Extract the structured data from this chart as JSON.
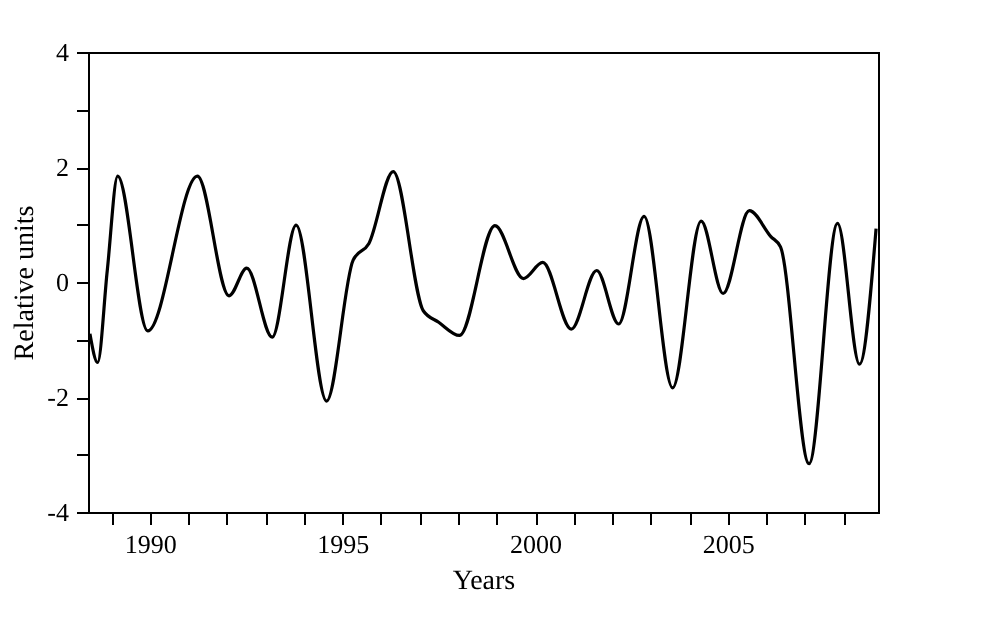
{
  "chart_data": {
    "type": "line",
    "xlabel": "Years",
    "ylabel": "Relative units",
    "x": [
      1988.45,
      1988.65,
      1988.9,
      1989.17,
      1989.95,
      1991.24,
      1992.06,
      1992.52,
      1993.18,
      1993.8,
      1994.59,
      1995.28,
      1995.69,
      1996.32,
      1997.1,
      1997.5,
      1998.04,
      1998.96,
      1999.7,
      2000.2,
      2000.94,
      2001.6,
      2002.17,
      2002.83,
      2003.57,
      2004.31,
      2004.88,
      2005.56,
      2006.12,
      2006.37,
      2007.11,
      2007.85,
      2008.42,
      2008.85
    ],
    "series": [
      {
        "color": "#000000",
        "values": [
          -0.9,
          -1.4,
          0.2,
          1.84,
          -0.85,
          1.84,
          -0.24,
          0.24,
          -0.96,
          0.99,
          -2.07,
          0.38,
          0.67,
          1.92,
          -0.5,
          -0.7,
          -0.93,
          0.98,
          0.06,
          0.34,
          -0.82,
          0.2,
          -0.73,
          1.14,
          -1.84,
          1.06,
          -0.2,
          1.24,
          0.79,
          0.61,
          -3.16,
          1.02,
          -1.43,
          0.93
        ]
      }
    ],
    "xlim": [
      1988.4,
      2008.9
    ],
    "xticks": [
      {
        "value": 1989,
        "label": null
      },
      1990,
      {
        "value": 1991,
        "label": null
      },
      {
        "value": 1992,
        "label": null
      },
      {
        "value": 1993,
        "label": null
      },
      {
        "value": 1994,
        "label": null
      },
      1995,
      {
        "value": 1996,
        "label": null
      },
      {
        "value": 1997,
        "label": null
      },
      {
        "value": 1998,
        "label": null
      },
      {
        "value": 1999,
        "label": null
      },
      2000,
      {
        "value": 2001,
        "label": null
      },
      {
        "value": 2002,
        "label": null
      },
      {
        "value": 2003,
        "label": null
      },
      {
        "value": 2004,
        "label": null
      },
      2005,
      {
        "value": 2006,
        "label": null
      },
      {
        "value": 2007,
        "label": null
      },
      {
        "value": 2008,
        "label": null
      }
    ],
    "ylim": [
      -4,
      4
    ],
    "yticks": [
      -4,
      {
        "value": -3,
        "label": null
      },
      -2,
      {
        "value": -1,
        "label": null
      },
      0,
      {
        "value": 1,
        "label": null
      },
      2,
      {
        "value": 3,
        "label": null
      },
      4
    ],
    "grid": false,
    "marker": "none",
    "line_style": "solid"
  }
}
